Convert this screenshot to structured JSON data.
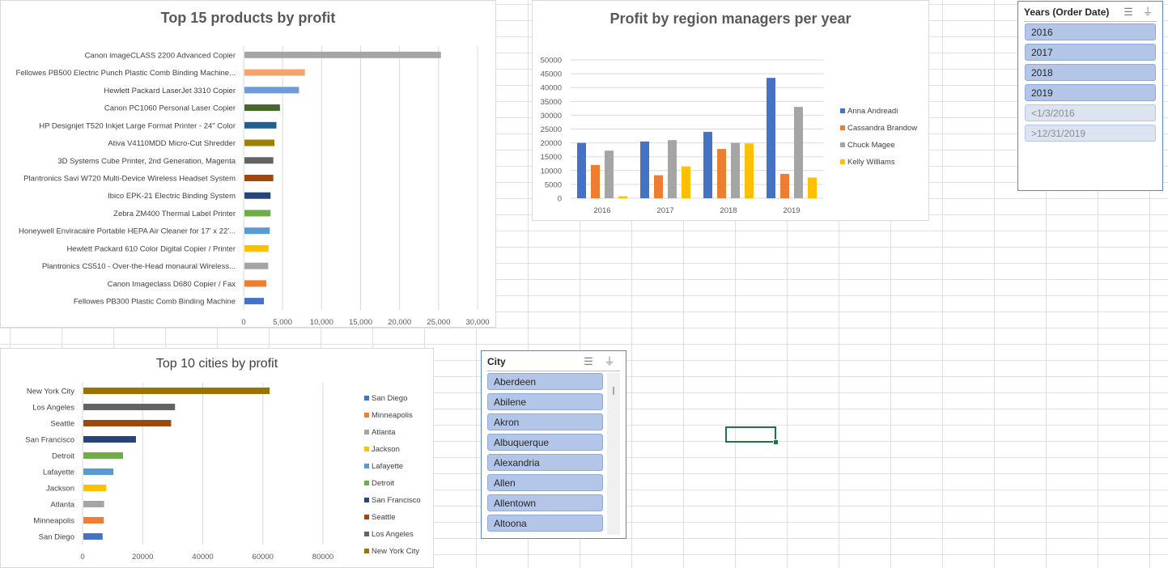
{
  "charts": {
    "products": {
      "title": "Top 15 products by profit",
      "chart_data": {
        "type": "bar",
        "orientation": "horizontal",
        "title": "Top 15 products by profit",
        "categories": [
          "Canon imageCLASS 2200 Advanced Copier",
          "Fellowes PB500 Electric Punch Plastic Comb Binding Machine...",
          "Hewlett Packard LaserJet 3310 Copier",
          "Canon PC1060 Personal Laser Copier",
          "HP Designjet T520 Inkjet Large Format Printer - 24\" Color",
          "Ativa V4110MDD Micro-Cut Shredder",
          "3D Systems Cube Printer, 2nd Generation, Magenta",
          "Plantronics Savi W720 Multi-Device Wireless Headset System",
          "Ibico EPK-21 Electric Binding System",
          "Zebra ZM400 Thermal Label Printer",
          "Honeywell Enviracaire Portable HEPA Air Cleaner for 17' x 22'...",
          "Hewlett Packard 610 Color Digital Copier / Printer",
          "Plantronics CS510 - Over-the-Head monaural Wireless...",
          "Canon Imageclass D680 Copier / Fax",
          "Fellowes PB300 Plastic Comb Binding Machine"
        ],
        "values": [
          25200,
          7750,
          7000,
          4550,
          4100,
          3850,
          3700,
          3700,
          3350,
          3350,
          3250,
          3100,
          3050,
          2800,
          2500
        ],
        "colors": [
          "#a5a5a5",
          "#f4a46f",
          "#6f9bd8",
          "#43682b",
          "#255e91",
          "#9e8005",
          "#636363",
          "#9e480e",
          "#264478",
          "#70ad47",
          "#5b9bd5",
          "#ffc000",
          "#a5a5a5",
          "#ed7d31",
          "#4472c4"
        ],
        "xlim": [
          0,
          30000
        ],
        "xticks": [
          "0",
          "5,000",
          "10,000",
          "15,000",
          "20,000",
          "25,000",
          "30,000"
        ]
      }
    },
    "regions": {
      "title": "Profit by region managers per year",
      "chart_data": {
        "type": "bar",
        "title": "Profit by region managers per year",
        "categories": [
          "2016",
          "2017",
          "2018",
          "2019"
        ],
        "series": [
          {
            "name": "Anna Andreadi",
            "color": "#4472c4",
            "values": [
              20000,
              20500,
              24000,
              43500
            ]
          },
          {
            "name": "Cassandra Brandow",
            "color": "#ed7d31",
            "values": [
              12000,
              8300,
              17800,
              8800
            ]
          },
          {
            "name": "Chuck Magee",
            "color": "#a5a5a5",
            "values": [
              17200,
              21000,
              20000,
              33000
            ]
          },
          {
            "name": "Kelly Williams",
            "color": "#ffc000",
            "values": [
              700,
              11500,
              19800,
              7500
            ]
          }
        ],
        "ylim": [
          0,
          50000
        ],
        "yticks": [
          "0",
          "5000",
          "10000",
          "15000",
          "20000",
          "25000",
          "30000",
          "35000",
          "40000",
          "45000",
          "50000"
        ],
        "legend": "right"
      }
    },
    "cities": {
      "title": "Top 10 cities by profit",
      "chart_data": {
        "type": "bar",
        "orientation": "horizontal",
        "title": "Top 10 cities by profit",
        "categories": [
          "New York City",
          "Los Angeles",
          "Seattle",
          "San Francisco",
          "Detroit",
          "Lafayette",
          "Jackson",
          "Atlanta",
          "Minneapolis",
          "San Diego"
        ],
        "values": [
          62000,
          30500,
          29200,
          17500,
          13200,
          10000,
          7600,
          6900,
          6800,
          6400
        ],
        "colors": [
          "#997300",
          "#636363",
          "#9e480e",
          "#264478",
          "#70ad47",
          "#5b9bd5",
          "#ffc000",
          "#a5a5a5",
          "#ed7d31",
          "#4472c4"
        ],
        "xlim": [
          0,
          80000
        ],
        "xticks": [
          "0",
          "20000",
          "40000",
          "60000",
          "80000"
        ],
        "legend": "right",
        "legend_order": [
          "San Diego",
          "Minneapolis",
          "Atlanta",
          "Jackson",
          "Lafayette",
          "Detroit",
          "San Francisco",
          "Seattle",
          "Los Angeles",
          "New York City"
        ]
      }
    }
  },
  "slicers": {
    "years": {
      "title": "Years (Order Date)",
      "items": [
        "2016",
        "2017",
        "2018",
        "2019",
        "<1/3/2016",
        ">12/31/2019"
      ]
    },
    "city": {
      "title": "City",
      "items": [
        "Aberdeen",
        "Abilene",
        "Akron",
        "Albuquerque",
        "Alexandria",
        "Allen",
        "Allentown",
        "Altoona"
      ]
    }
  },
  "icons": {
    "multiselect": "multi-select-icon",
    "clearfilter": "clear-filter-icon"
  }
}
